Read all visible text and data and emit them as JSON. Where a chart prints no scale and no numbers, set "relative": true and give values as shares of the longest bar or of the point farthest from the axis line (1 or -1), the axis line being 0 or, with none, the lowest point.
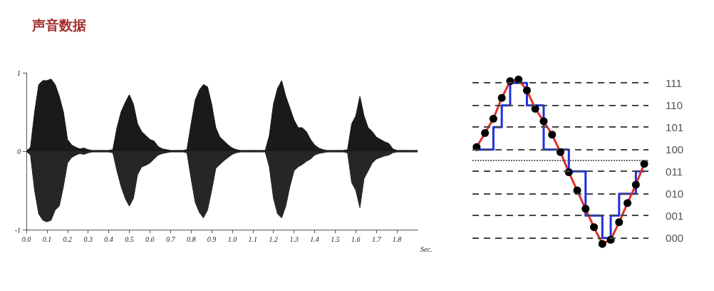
{
  "chart_data": [
    {
      "type": "area",
      "title": "声音数据",
      "xlabel": "Sec.",
      "x": [
        0,
        0.02,
        0.04,
        0.06,
        0.08,
        0.1,
        0.12,
        0.14,
        0.16,
        0.18,
        0.2,
        0.22,
        0.24,
        0.26,
        0.28,
        0.3,
        0.32,
        0.34,
        0.36,
        0.38,
        0.4,
        0.42,
        0.44,
        0.46,
        0.48,
        0.5,
        0.52,
        0.54,
        0.56,
        0.58,
        0.6,
        0.62,
        0.64,
        0.66,
        0.68,
        0.7,
        0.72,
        0.74,
        0.76,
        0.78,
        0.8,
        0.82,
        0.84,
        0.86,
        0.88,
        0.9,
        0.92,
        0.94,
        0.96,
        0.98,
        1.0,
        1.02,
        1.04,
        1.06,
        1.08,
        1.1,
        1.12,
        1.14,
        1.16,
        1.18,
        1.2,
        1.22,
        1.24,
        1.26,
        1.28,
        1.3,
        1.32,
        1.34,
        1.36,
        1.38,
        1.4,
        1.42,
        1.44,
        1.46,
        1.48,
        1.5,
        1.52,
        1.54,
        1.56,
        1.58,
        1.6,
        1.62,
        1.64,
        1.66,
        1.68,
        1.7,
        1.72,
        1.74,
        1.76,
        1.78,
        1.8,
        1.82,
        1.84,
        1.86,
        1.88,
        1.9
      ],
      "series": [
        {
          "color": "#1a1a1a",
          "values": [
            0,
            0.05,
            0.5,
            0.85,
            0.9,
            0.9,
            0.92,
            0.85,
            0.7,
            0.5,
            0.15,
            0.08,
            0.05,
            0.03,
            0.04,
            0.02,
            0.01,
            0.01,
            0.01,
            0.01,
            0.01,
            0.02,
            0.3,
            0.5,
            0.62,
            0.72,
            0.6,
            0.35,
            0.25,
            0.2,
            0.15,
            0.13,
            0.06,
            0.03,
            0.02,
            0.01,
            0.01,
            0.01,
            0.01,
            0.02,
            0.35,
            0.65,
            0.78,
            0.85,
            0.82,
            0.6,
            0.3,
            0.18,
            0.13,
            0.08,
            0.04,
            0.02,
            0.01,
            0.01,
            0.01,
            0.01,
            0.01,
            0.01,
            0.01,
            0.2,
            0.6,
            0.8,
            0.9,
            0.7,
            0.55,
            0.4,
            0.3,
            0.3,
            0.25,
            0.15,
            0.08,
            0.04,
            0.02,
            0.01,
            0.01,
            0.01,
            0.01,
            0.01,
            0.02,
            0.35,
            0.45,
            0.7,
            0.45,
            0.3,
            0.25,
            0.18,
            0.15,
            0.12,
            0.1,
            0.03,
            0.01,
            0.01,
            0.01,
            0.01,
            0.01,
            0.01
          ]
        },
        {
          "color": "#262626",
          "values": [
            0,
            -0.05,
            -0.5,
            -0.8,
            -0.88,
            -0.9,
            -0.88,
            -0.75,
            -0.7,
            -0.45,
            -0.15,
            -0.08,
            -0.05,
            -0.03,
            -0.04,
            -0.02,
            -0.01,
            -0.01,
            -0.01,
            -0.01,
            -0.01,
            -0.02,
            -0.25,
            -0.45,
            -0.6,
            -0.7,
            -0.6,
            -0.3,
            -0.2,
            -0.18,
            -0.15,
            -0.1,
            -0.05,
            -0.03,
            -0.02,
            -0.01,
            -0.01,
            -0.01,
            -0.01,
            -0.02,
            -0.35,
            -0.65,
            -0.78,
            -0.85,
            -0.75,
            -0.5,
            -0.22,
            -0.17,
            -0.12,
            -0.08,
            -0.04,
            -0.02,
            -0.01,
            -0.01,
            -0.01,
            -0.01,
            -0.01,
            -0.01,
            -0.01,
            -0.2,
            -0.6,
            -0.8,
            -0.85,
            -0.7,
            -0.45,
            -0.25,
            -0.2,
            -0.17,
            -0.13,
            -0.1,
            -0.05,
            -0.03,
            -0.02,
            -0.01,
            -0.01,
            -0.01,
            -0.01,
            -0.01,
            -0.02,
            -0.4,
            -0.5,
            -0.72,
            -0.35,
            -0.25,
            -0.15,
            -0.1,
            -0.08,
            -0.06,
            -0.05,
            -0.02,
            -0.01,
            -0.01,
            -0.01,
            -0.01,
            -0.01,
            -0.01
          ]
        }
      ],
      "xlim": [
        0,
        1.9
      ],
      "xticks": [
        {
          "value": 0,
          "label": "0.0"
        },
        0.1,
        0.2,
        0.3,
        0.4,
        0.5,
        0.6,
        0.7,
        0.8,
        0.9,
        {
          "value": 1,
          "label": "1.0"
        },
        1.1,
        1.2,
        1.3,
        1.4,
        1.5,
        1.6,
        1.7,
        1.8
      ],
      "ylim": [
        -1,
        1
      ],
      "yticks": [
        -1,
        0,
        1
      ]
    },
    {
      "type": "line",
      "relative": true,
      "line_style": "solid",
      "categories": [
        null,
        null,
        null,
        null,
        null,
        null,
        null,
        null,
        null,
        null,
        null,
        null,
        null,
        null,
        null,
        null,
        null,
        null,
        null,
        null,
        null
      ],
      "ref_lines": [
        {
          "axis": "y",
          "value": 0.93,
          "line_style": "dashed",
          "color": "#444444"
        },
        {
          "axis": "y",
          "value": 0.66,
          "line_style": "dashed",
          "color": "#444444"
        },
        {
          "axis": "y",
          "value": 0.4,
          "line_style": "dashed",
          "color": "#444444"
        },
        {
          "axis": "y",
          "value": 0.13,
          "line_style": "dashed",
          "color": "#444444"
        },
        {
          "axis": "y",
          "value": -0.13,
          "line_style": "dashed",
          "color": "#444444"
        },
        {
          "axis": "y",
          "value": -0.4,
          "line_style": "dashed",
          "color": "#444444"
        },
        {
          "axis": "y",
          "value": -0.66,
          "line_style": "dashed",
          "color": "#444444"
        },
        {
          "axis": "y",
          "value": -0.93,
          "line_style": "dashed",
          "color": "#444444"
        },
        {
          "axis": "y",
          "value": 0,
          "line_style": "dotted",
          "color": "#555555"
        }
      ],
      "annotations": [
        "111",
        "110",
        "101",
        "100",
        "011",
        "010",
        "001",
        "000"
      ],
      "series": [
        {
          "type": "step",
          "color": "#1f2fe0",
          "values": [
            0.13,
            0.13,
            0.4,
            0.66,
            0.93,
            0.93,
            0.66,
            0.66,
            0.13,
            0.13,
            0.13,
            -0.13,
            -0.13,
            -0.66,
            -0.66,
            -0.93,
            -0.66,
            -0.4,
            -0.4,
            -0.13,
            -0.13
          ]
        },
        {
          "color": "#e0302a",
          "marker": "circle",
          "colors": [
            "#000000",
            "#000000",
            "#000000",
            "#000000",
            "#000000",
            "#000000",
            "#000000",
            "#000000",
            "#000000",
            "#000000",
            "#000000",
            "#000000",
            "#000000",
            "#000000",
            "#000000",
            "#000000",
            "#000000",
            "#000000",
            "#000000",
            "#000000",
            "#000000"
          ],
          "values": [
            0.16,
            0.33,
            0.5,
            0.75,
            0.95,
            0.97,
            0.84,
            0.62,
            0.47,
            0.31,
            0.1,
            -0.14,
            -0.36,
            -0.58,
            -0.8,
            -1,
            -0.95,
            -0.74,
            -0.51,
            -0.29,
            -0.04
          ]
        }
      ]
    }
  ]
}
